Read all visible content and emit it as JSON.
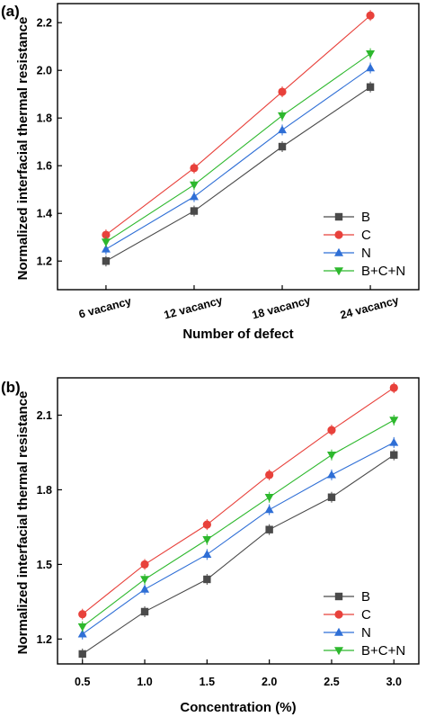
{
  "colors": {
    "B": "#4a4a4a",
    "C": "#e8413b",
    "N": "#2f6fd6",
    "BCN": "#2db82d",
    "frame": "#000000"
  },
  "chart_data": [
    {
      "panel_label": "(a)",
      "type": "line",
      "xlabel": "Number of defect",
      "ylabel": "Normalized interfacial thermal resistance",
      "categories": [
        "6 vacancy",
        "12 vacancy",
        "18 vacancy",
        "24 vacancy"
      ],
      "ylim": [
        1.08,
        2.28
      ],
      "yticks": [
        "1.2",
        "1.4",
        "1.6",
        "1.8",
        "2.0",
        "2.2"
      ],
      "legend_position": "bottom-right",
      "grid": false,
      "series": [
        {
          "name": "B",
          "marker": "square",
          "color_key": "B",
          "values": [
            1.2,
            1.41,
            1.68,
            1.93
          ]
        },
        {
          "name": "C",
          "marker": "circle",
          "color_key": "C",
          "values": [
            1.31,
            1.59,
            1.91,
            2.23
          ]
        },
        {
          "name": "N",
          "marker": "triangle-up",
          "color_key": "N",
          "values": [
            1.25,
            1.47,
            1.75,
            2.01
          ]
        },
        {
          "name": "B+C+N",
          "marker": "triangle-down",
          "color_key": "BCN",
          "values": [
            1.28,
            1.52,
            1.81,
            2.07
          ]
        }
      ]
    },
    {
      "panel_label": "(b)",
      "type": "line",
      "xlabel": "Concentration (%)",
      "ylabel": "Normalized interfacial thermal resistance",
      "x": [
        0.5,
        1.0,
        1.5,
        2.0,
        2.5,
        3.0
      ],
      "xticks": [
        "0.5",
        "1.0",
        "1.5",
        "2.0",
        "2.5",
        "3.0"
      ],
      "xlim": [
        0.3,
        3.2
      ],
      "ylim": [
        1.1,
        2.25
      ],
      "yticks": [
        "1.2",
        "1.5",
        "1.8",
        "2.1"
      ],
      "legend_position": "bottom-right",
      "grid": false,
      "series": [
        {
          "name": "B",
          "marker": "square",
          "color_key": "B",
          "values": [
            1.14,
            1.31,
            1.44,
            1.64,
            1.77,
            1.94
          ]
        },
        {
          "name": "C",
          "marker": "circle",
          "color_key": "C",
          "values": [
            1.3,
            1.5,
            1.66,
            1.86,
            2.04,
            2.21
          ]
        },
        {
          "name": "N",
          "marker": "triangle-up",
          "color_key": "N",
          "values": [
            1.22,
            1.4,
            1.54,
            1.72,
            1.86,
            1.99
          ]
        },
        {
          "name": "B+C+N",
          "marker": "triangle-down",
          "color_key": "BCN",
          "values": [
            1.25,
            1.44,
            1.6,
            1.77,
            1.94,
            2.08
          ]
        }
      ]
    }
  ]
}
